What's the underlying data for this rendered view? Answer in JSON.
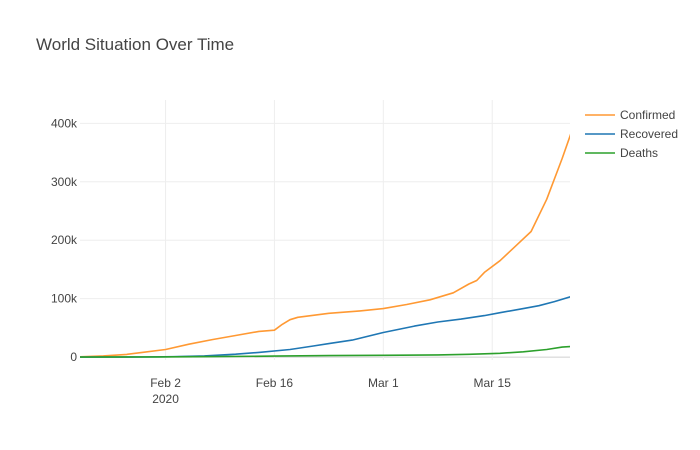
{
  "chart_data": {
    "type": "line",
    "title": "World Situation Over Time",
    "xlabel": "",
    "ylabel": "",
    "x_start": "2020-01-22",
    "x_end": "2020-03-25",
    "xlim": [
      "2020-01-22",
      "2020-03-25"
    ],
    "ylim": [
      -5000,
      440000
    ],
    "x_ticks": [
      {
        "date": "2020-02-02",
        "label": "Feb 2",
        "sublabel": "2020"
      },
      {
        "date": "2020-02-16",
        "label": "Feb 16",
        "sublabel": ""
      },
      {
        "date": "2020-03-01",
        "label": "Mar 1",
        "sublabel": ""
      },
      {
        "date": "2020-03-15",
        "label": "Mar 15",
        "sublabel": ""
      }
    ],
    "y_ticks": [
      {
        "value": 0,
        "label": "0"
      },
      {
        "value": 100000,
        "label": "100k"
      },
      {
        "value": 200000,
        "label": "200k"
      },
      {
        "value": 300000,
        "label": "300k"
      },
      {
        "value": 400000,
        "label": "400k"
      }
    ],
    "grid": true,
    "legend_position": "top-right",
    "series": [
      {
        "name": "Confirmed",
        "color": "#ff9933",
        "points": [
          [
            "2020-01-22",
            555
          ],
          [
            "2020-01-25",
            2000
          ],
          [
            "2020-01-28",
            4500
          ],
          [
            "2020-01-30",
            8000
          ],
          [
            "2020-02-02",
            13000
          ],
          [
            "2020-02-05",
            22000
          ],
          [
            "2020-02-08",
            30000
          ],
          [
            "2020-02-11",
            37000
          ],
          [
            "2020-02-14",
            44000
          ],
          [
            "2020-02-16",
            46000
          ],
          [
            "2020-02-17",
            56000
          ],
          [
            "2020-02-18",
            64000
          ],
          [
            "2020-02-19",
            68000
          ],
          [
            "2020-02-23",
            75000
          ],
          [
            "2020-02-27",
            79000
          ],
          [
            "2020-03-01",
            83000
          ],
          [
            "2020-03-04",
            90000
          ],
          [
            "2020-03-07",
            98000
          ],
          [
            "2020-03-10",
            110000
          ],
          [
            "2020-03-12",
            125000
          ],
          [
            "2020-03-13",
            131000
          ],
          [
            "2020-03-14",
            145000
          ],
          [
            "2020-03-16",
            165000
          ],
          [
            "2020-03-18",
            190000
          ],
          [
            "2020-03-20",
            215000
          ],
          [
            "2020-03-22",
            270000
          ],
          [
            "2020-03-24",
            340000
          ],
          [
            "2020-03-25",
            378000
          ],
          [
            "2020-03-26",
            418000
          ]
        ]
      },
      {
        "name": "Recovered",
        "color": "#1f77b4",
        "points": [
          [
            "2020-01-22",
            28
          ],
          [
            "2020-01-30",
            200
          ],
          [
            "2020-02-03",
            600
          ],
          [
            "2020-02-07",
            2000
          ],
          [
            "2020-02-11",
            5000
          ],
          [
            "2020-02-14",
            8000
          ],
          [
            "2020-02-18",
            13000
          ],
          [
            "2020-02-21",
            19000
          ],
          [
            "2020-02-23",
            23000
          ],
          [
            "2020-02-26",
            29000
          ],
          [
            "2020-03-01",
            42000
          ],
          [
            "2020-03-05",
            53000
          ],
          [
            "2020-03-08",
            60000
          ],
          [
            "2020-03-11",
            65000
          ],
          [
            "2020-03-14",
            71000
          ],
          [
            "2020-03-16",
            76000
          ],
          [
            "2020-03-19",
            83000
          ],
          [
            "2020-03-21",
            88000
          ],
          [
            "2020-03-23",
            95000
          ],
          [
            "2020-03-25",
            103000
          ],
          [
            "2020-03-26",
            109000
          ]
        ]
      },
      {
        "name": "Deaths",
        "color": "#2ca02c",
        "points": [
          [
            "2020-01-22",
            17
          ],
          [
            "2020-02-01",
            300
          ],
          [
            "2020-02-08",
            800
          ],
          [
            "2020-02-16",
            1700
          ],
          [
            "2020-02-23",
            2500
          ],
          [
            "2020-03-01",
            3000
          ],
          [
            "2020-03-08",
            3700
          ],
          [
            "2020-03-12",
            4700
          ],
          [
            "2020-03-16",
            6500
          ],
          [
            "2020-03-19",
            9000
          ],
          [
            "2020-03-22",
            13000
          ],
          [
            "2020-03-24",
            17000
          ],
          [
            "2020-03-26",
            19000
          ]
        ]
      }
    ]
  }
}
